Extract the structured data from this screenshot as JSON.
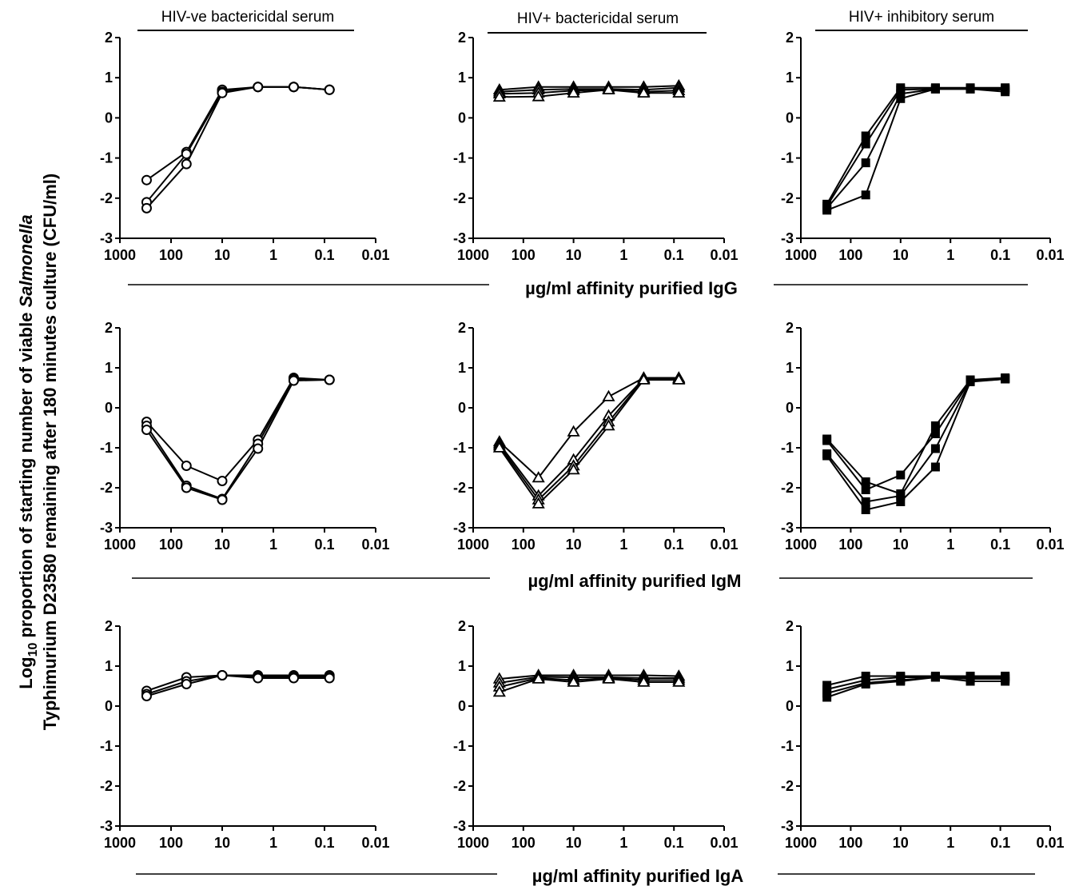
{
  "figure": {
    "ylabel_line1_prefix": "Log",
    "ylabel_line1_sub": "10",
    "ylabel_line1_mid": " proportion of starting number of viable ",
    "ylabel_line1_italic": "Salmonella",
    "ylabel_line2": "Typhimurium D23580 remaining after 180 minutes culture (CFU/ml)",
    "column_titles": [
      "HIV-ve bactericidal serum",
      "HIV+ bactericidal serum",
      "HIV+ inhibitory serum"
    ],
    "row_xlabels": [
      "µg/ml affinity purified IgG",
      "µg/ml affinity purified IgM",
      "µg/ml affinity purified IgA"
    ]
  },
  "chart_data": [
    {
      "type": "line",
      "row": 0,
      "col": 0,
      "marker": "circle",
      "x_scale": "log",
      "x_reversed": true,
      "xlim": [
        1000,
        0.01
      ],
      "ylim": [
        -3,
        2
      ],
      "x_ticks": [
        "1000",
        "100",
        "10",
        "1",
        "0.1",
        "0.01"
      ],
      "y_ticks": [
        "-3",
        "-2",
        "-1",
        "0",
        "1",
        "2"
      ],
      "x": [
        300,
        50,
        10,
        2,
        0.4,
        0.08
      ],
      "series": [
        {
          "values": [
            -1.55,
            -0.85,
            0.7,
            0.77,
            0.77,
            0.7
          ]
        },
        {
          "values": [
            -2.1,
            -0.9,
            0.65,
            0.77,
            0.77,
            0.7
          ]
        },
        {
          "values": [
            -2.25,
            -1.15,
            0.62,
            0.77,
            0.77,
            0.7
          ]
        }
      ]
    },
    {
      "type": "line",
      "row": 0,
      "col": 1,
      "marker": "triangle",
      "x_scale": "log",
      "x_reversed": true,
      "xlim": [
        1000,
        0.01
      ],
      "ylim": [
        -3,
        2
      ],
      "x_ticks": [
        "1000",
        "100",
        "10",
        "1",
        "0.1",
        "0.01"
      ],
      "y_ticks": [
        "-3",
        "-2",
        "-1",
        "0",
        "1",
        "2"
      ],
      "x": [
        300,
        50,
        10,
        2,
        0.4,
        0.08
      ],
      "series": [
        {
          "values": [
            0.7,
            0.77,
            0.77,
            0.77,
            0.77,
            0.8
          ]
        },
        {
          "values": [
            0.65,
            0.7,
            0.72,
            0.72,
            0.7,
            0.75
          ]
        },
        {
          "values": [
            0.6,
            0.62,
            0.68,
            0.7,
            0.65,
            0.68
          ]
        },
        {
          "values": [
            0.52,
            0.53,
            0.62,
            0.7,
            0.62,
            0.62
          ]
        }
      ]
    },
    {
      "type": "line",
      "row": 0,
      "col": 2,
      "marker": "square",
      "x_scale": "log",
      "x_reversed": true,
      "xlim": [
        1000,
        0.01
      ],
      "ylim": [
        -3,
        2
      ],
      "x_ticks": [
        "1000",
        "100",
        "10",
        "1",
        "0.1",
        "0.01"
      ],
      "y_ticks": [
        "-3",
        "-2",
        "-1",
        "0",
        "1",
        "2"
      ],
      "x": [
        300,
        50,
        10,
        2,
        0.4,
        0.08
      ],
      "series": [
        {
          "values": [
            -2.15,
            -0.45,
            0.75,
            0.75,
            0.75,
            0.75
          ]
        },
        {
          "values": [
            -2.2,
            -0.65,
            0.7,
            0.72,
            0.72,
            0.7
          ]
        },
        {
          "values": [
            -2.25,
            -1.12,
            0.6,
            0.72,
            0.72,
            0.72
          ]
        },
        {
          "values": [
            -2.3,
            -1.92,
            0.48,
            0.72,
            0.72,
            0.65
          ]
        }
      ]
    },
    {
      "type": "line",
      "row": 1,
      "col": 0,
      "marker": "circle",
      "x_scale": "log",
      "x_reversed": true,
      "xlim": [
        1000,
        0.01
      ],
      "ylim": [
        -3,
        2
      ],
      "x_ticks": [
        "1000",
        "100",
        "10",
        "1",
        "0.1",
        "0.01"
      ],
      "y_ticks": [
        "-3",
        "-2",
        "-1",
        "0",
        "1",
        "2"
      ],
      "x": [
        300,
        50,
        10,
        2,
        0.4,
        0.08
      ],
      "series": [
        {
          "values": [
            -0.35,
            -1.45,
            -1.83,
            -0.8,
            0.75,
            0.7
          ]
        },
        {
          "values": [
            -0.45,
            -1.95,
            -2.28,
            -0.9,
            0.72,
            0.7
          ]
        },
        {
          "values": [
            -0.55,
            -2.0,
            -2.3,
            -1.02,
            0.68,
            0.7
          ]
        }
      ]
    },
    {
      "type": "line",
      "row": 1,
      "col": 1,
      "marker": "triangle",
      "x_scale": "log",
      "x_reversed": true,
      "xlim": [
        1000,
        0.01
      ],
      "ylim": [
        -3,
        2
      ],
      "x_ticks": [
        "1000",
        "100",
        "10",
        "1",
        "0.1",
        "0.01"
      ],
      "y_ticks": [
        "-3",
        "-2",
        "-1",
        "0",
        "1",
        "2"
      ],
      "x": [
        300,
        50,
        10,
        2,
        0.4,
        0.08
      ],
      "series": [
        {
          "values": [
            -0.85,
            -1.75,
            -0.6,
            0.28,
            0.75,
            0.75
          ]
        },
        {
          "values": [
            -0.9,
            -2.2,
            -1.3,
            -0.2,
            0.73,
            0.73
          ]
        },
        {
          "values": [
            -0.95,
            -2.3,
            -1.45,
            -0.35,
            0.72,
            0.72
          ]
        },
        {
          "values": [
            -1.0,
            -2.4,
            -1.55,
            -0.45,
            0.7,
            0.7
          ]
        }
      ]
    },
    {
      "type": "line",
      "row": 1,
      "col": 2,
      "marker": "square",
      "x_scale": "log",
      "x_reversed": true,
      "xlim": [
        1000,
        0.01
      ],
      "ylim": [
        -3,
        2
      ],
      "x_ticks": [
        "1000",
        "100",
        "10",
        "1",
        "0.1",
        "0.01"
      ],
      "y_ticks": [
        "-3",
        "-2",
        "-1",
        "0",
        "1",
        "2"
      ],
      "x": [
        300,
        50,
        10,
        2,
        0.4,
        0.08
      ],
      "series": [
        {
          "values": [
            -0.78,
            -1.85,
            -2.15,
            -0.45,
            0.7,
            0.75
          ]
        },
        {
          "values": [
            -0.82,
            -2.05,
            -1.68,
            -0.65,
            0.68,
            0.73
          ]
        },
        {
          "values": [
            -1.15,
            -2.35,
            -2.2,
            -1.02,
            0.66,
            0.72
          ]
        },
        {
          "values": [
            -1.2,
            -2.55,
            -2.35,
            -1.48,
            0.65,
            0.72
          ]
        }
      ]
    },
    {
      "type": "line",
      "row": 2,
      "col": 0,
      "marker": "circle",
      "x_scale": "log",
      "x_reversed": true,
      "xlim": [
        1000,
        0.01
      ],
      "ylim": [
        -3,
        2
      ],
      "x_ticks": [
        "1000",
        "100",
        "10",
        "1",
        "0.1",
        "0.01"
      ],
      "y_ticks": [
        "-3",
        "-2",
        "-1",
        "0",
        "1",
        "2"
      ],
      "x": [
        300,
        50,
        10,
        2,
        0.4,
        0.08
      ],
      "series": [
        {
          "values": [
            0.38,
            0.72,
            0.77,
            0.77,
            0.77,
            0.77
          ]
        },
        {
          "values": [
            0.3,
            0.62,
            0.77,
            0.73,
            0.73,
            0.73
          ]
        },
        {
          "values": [
            0.25,
            0.55,
            0.77,
            0.7,
            0.7,
            0.7
          ]
        }
      ]
    },
    {
      "type": "line",
      "row": 2,
      "col": 1,
      "marker": "triangle",
      "x_scale": "log",
      "x_reversed": true,
      "xlim": [
        1000,
        0.01
      ],
      "ylim": [
        -3,
        2
      ],
      "x_ticks": [
        "1000",
        "100",
        "10",
        "1",
        "0.1",
        "0.01"
      ],
      "y_ticks": [
        "-3",
        "-2",
        "-1",
        "0",
        "1",
        "2"
      ],
      "x": [
        300,
        50,
        10,
        2,
        0.4,
        0.08
      ],
      "series": [
        {
          "values": [
            0.68,
            0.77,
            0.77,
            0.77,
            0.77,
            0.75
          ]
        },
        {
          "values": [
            0.58,
            0.73,
            0.72,
            0.72,
            0.7,
            0.7
          ]
        },
        {
          "values": [
            0.48,
            0.7,
            0.65,
            0.7,
            0.65,
            0.65
          ]
        },
        {
          "values": [
            0.35,
            0.68,
            0.6,
            0.68,
            0.6,
            0.6
          ]
        }
      ]
    },
    {
      "type": "line",
      "row": 2,
      "col": 2,
      "marker": "square",
      "x_scale": "log",
      "x_reversed": true,
      "xlim": [
        1000,
        0.01
      ],
      "ylim": [
        -3,
        2
      ],
      "x_ticks": [
        "1000",
        "100",
        "10",
        "1",
        "0.1",
        "0.01"
      ],
      "y_ticks": [
        "-3",
        "-2",
        "-1",
        "0",
        "1",
        "2"
      ],
      "x": [
        300,
        50,
        10,
        2,
        0.4,
        0.08
      ],
      "series": [
        {
          "values": [
            0.52,
            0.75,
            0.75,
            0.75,
            0.75,
            0.75
          ]
        },
        {
          "values": [
            0.42,
            0.65,
            0.72,
            0.72,
            0.72,
            0.72
          ]
        },
        {
          "values": [
            0.32,
            0.58,
            0.65,
            0.72,
            0.68,
            0.68
          ]
        },
        {
          "values": [
            0.22,
            0.55,
            0.62,
            0.72,
            0.62,
            0.62
          ]
        }
      ]
    }
  ]
}
